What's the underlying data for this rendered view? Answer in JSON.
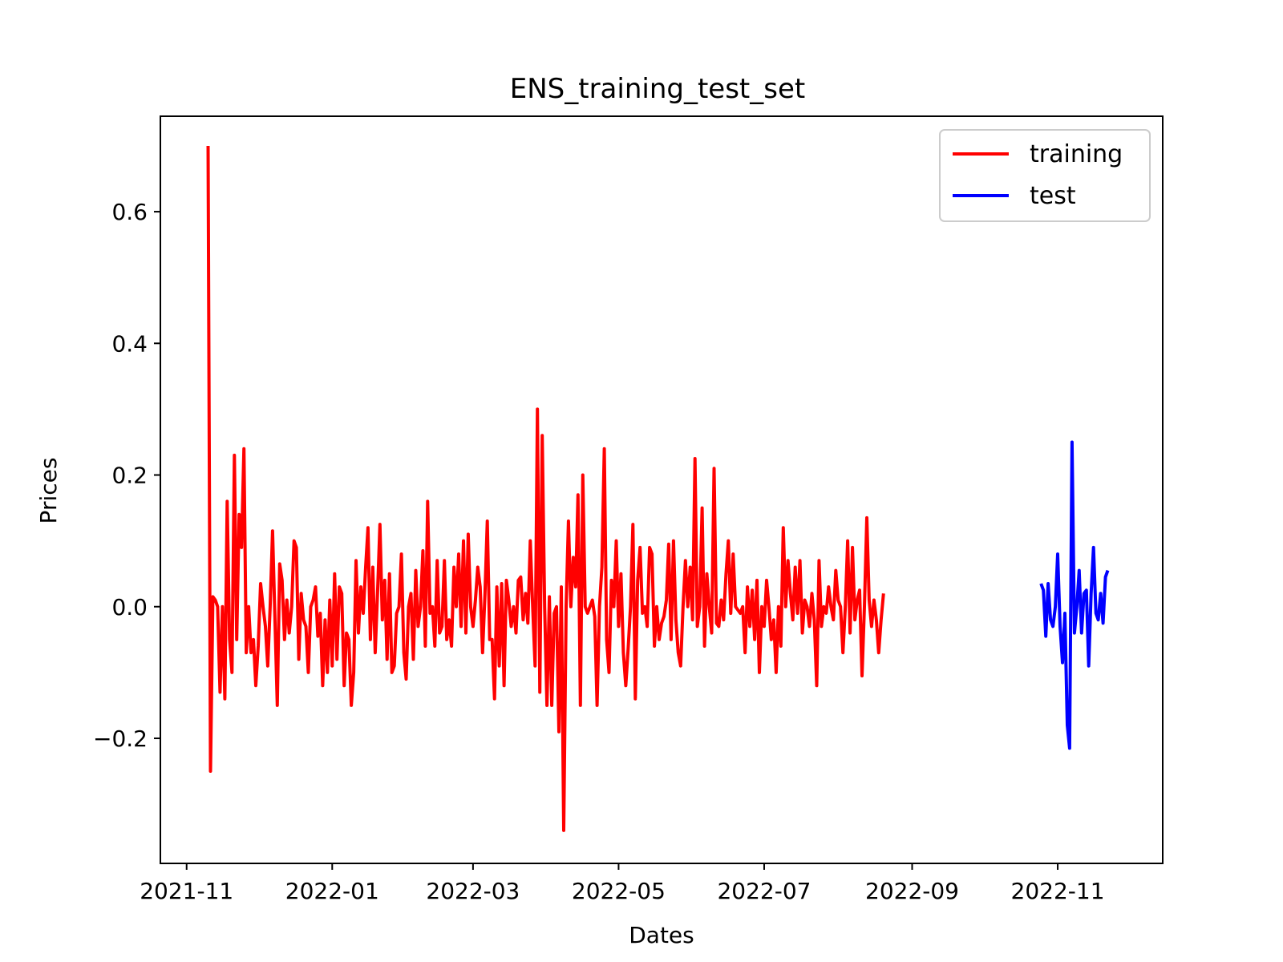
{
  "chart_data": {
    "type": "line",
    "title": "ENS_training_test_set",
    "xlabel": "Dates",
    "ylabel": "Prices",
    "xlim": [
      "2021-10-21",
      "2022-12-15"
    ],
    "ylim": [
      -0.39,
      0.745
    ],
    "x_ticks": [
      "2021-11-01",
      "2022-01-01",
      "2022-03-01",
      "2022-05-01",
      "2022-07-01",
      "2022-09-01",
      "2022-11-01"
    ],
    "x_tick_labels": [
      "2021-11",
      "2022-01",
      "2022-03",
      "2022-05",
      "2022-07",
      "2022-09",
      "2022-11"
    ],
    "y_ticks": [
      -0.2,
      0.0,
      0.2,
      0.4,
      0.6
    ],
    "y_tick_labels": [
      "−0.2",
      "0.0",
      "0.2",
      "0.4",
      "0.6"
    ],
    "grid": false,
    "legend_position": "upper-right",
    "series": [
      {
        "name": "training",
        "color": "#ff0000",
        "start_date": "2021-11-10",
        "values": [
          0.7,
          -0.25,
          0.015,
          0.01,
          0.0,
          -0.13,
          0.0,
          -0.14,
          0.16,
          -0.05,
          -0.1,
          0.23,
          -0.05,
          0.14,
          0.09,
          0.24,
          -0.07,
          0.0,
          -0.07,
          -0.05,
          -0.12,
          -0.06,
          0.035,
          0.0,
          -0.03,
          -0.09,
          0.0,
          0.115,
          -0.02,
          -0.15,
          0.065,
          0.04,
          -0.05,
          0.01,
          -0.04,
          0.0,
          0.1,
          0.09,
          -0.08,
          0.02,
          -0.02,
          -0.03,
          -0.1,
          0.0,
          0.01,
          0.03,
          -0.045,
          -0.01,
          -0.12,
          -0.02,
          -0.1,
          0.01,
          -0.09,
          0.05,
          -0.08,
          0.03,
          0.02,
          -0.12,
          -0.04,
          -0.05,
          -0.15,
          -0.1,
          0.07,
          -0.04,
          0.03,
          -0.01,
          0.06,
          0.12,
          -0.05,
          0.06,
          -0.07,
          0.02,
          0.125,
          -0.02,
          0.04,
          -0.08,
          0.05,
          -0.1,
          -0.09,
          -0.01,
          0.0,
          0.08,
          -0.07,
          -0.11,
          0.0,
          0.02,
          -0.08,
          0.055,
          -0.03,
          0.0,
          0.085,
          -0.06,
          0.16,
          -0.01,
          0.0,
          -0.06,
          0.07,
          -0.04,
          -0.03,
          0.07,
          -0.05,
          -0.02,
          -0.06,
          0.06,
          0.0,
          0.08,
          -0.03,
          0.1,
          -0.04,
          0.11,
          0.0,
          -0.03,
          0.01,
          0.06,
          0.03,
          -0.07,
          0.02,
          0.13,
          -0.05,
          -0.05,
          -0.14,
          0.03,
          -0.09,
          0.035,
          -0.12,
          0.04,
          0.01,
          -0.03,
          0.0,
          -0.04,
          0.04,
          0.045,
          -0.02,
          0.02,
          -0.025,
          0.1,
          0.0,
          -0.09,
          0.3,
          -0.13,
          0.26,
          0.0,
          -0.15,
          0.015,
          -0.15,
          -0.01,
          0.0,
          -0.19,
          0.03,
          -0.34,
          0.0,
          0.13,
          0.0,
          0.075,
          0.03,
          0.17,
          -0.15,
          0.2,
          0.0,
          -0.01,
          0.0,
          0.01,
          -0.015,
          -0.15,
          0.0,
          0.06,
          0.24,
          -0.05,
          -0.1,
          0.04,
          0.0,
          0.1,
          -0.03,
          0.05,
          -0.07,
          -0.12,
          -0.065,
          0.0,
          0.125,
          -0.14,
          0.04,
          0.09,
          -0.01,
          0.0,
          -0.03,
          0.09,
          0.08,
          -0.06,
          0.0,
          -0.05,
          -0.025,
          -0.015,
          0.01,
          0.095,
          -0.05,
          0.1,
          -0.02,
          -0.07,
          -0.09,
          0.0,
          0.07,
          0.0,
          0.06,
          -0.02,
          0.225,
          -0.03,
          0.0,
          0.15,
          -0.06,
          0.05,
          0.0,
          -0.04,
          0.21,
          -0.025,
          -0.03,
          0.01,
          -0.02,
          0.05,
          0.1,
          -0.01,
          0.08,
          0.0,
          -0.005,
          -0.01,
          0.0,
          -0.07,
          0.03,
          -0.03,
          0.025,
          -0.05,
          0.04,
          -0.1,
          0.0,
          -0.03,
          0.04,
          0.0,
          -0.05,
          -0.02,
          -0.1,
          0.0,
          -0.06,
          0.12,
          0.0,
          0.07,
          0.02,
          -0.02,
          0.06,
          -0.01,
          0.07,
          -0.04,
          0.01,
          0.0,
          -0.03,
          0.02,
          -0.02,
          -0.12,
          0.07,
          -0.03,
          0.0,
          -0.01,
          0.03,
          0.0,
          -0.02,
          0.055,
          0.01,
          0.0,
          -0.07,
          0.0,
          0.1,
          -0.04,
          0.09,
          -0.02,
          0.01,
          0.025,
          -0.105,
          0.0,
          0.135,
          0.01,
          -0.03,
          0.01,
          -0.02,
          -0.07,
          -0.02,
          0.02
        ]
      },
      {
        "name": "test",
        "color": "#0000ff",
        "start_date": "2022-10-25",
        "values": [
          0.035,
          0.025,
          -0.045,
          0.035,
          -0.02,
          -0.03,
          0.0,
          0.08,
          -0.03,
          -0.085,
          -0.01,
          -0.18,
          -0.215,
          0.25,
          -0.04,
          0.0,
          0.055,
          -0.04,
          0.02,
          0.025,
          -0.09,
          0.02,
          0.09,
          -0.01,
          -0.02,
          0.02,
          -0.025,
          0.045,
          0.055
        ]
      }
    ]
  }
}
